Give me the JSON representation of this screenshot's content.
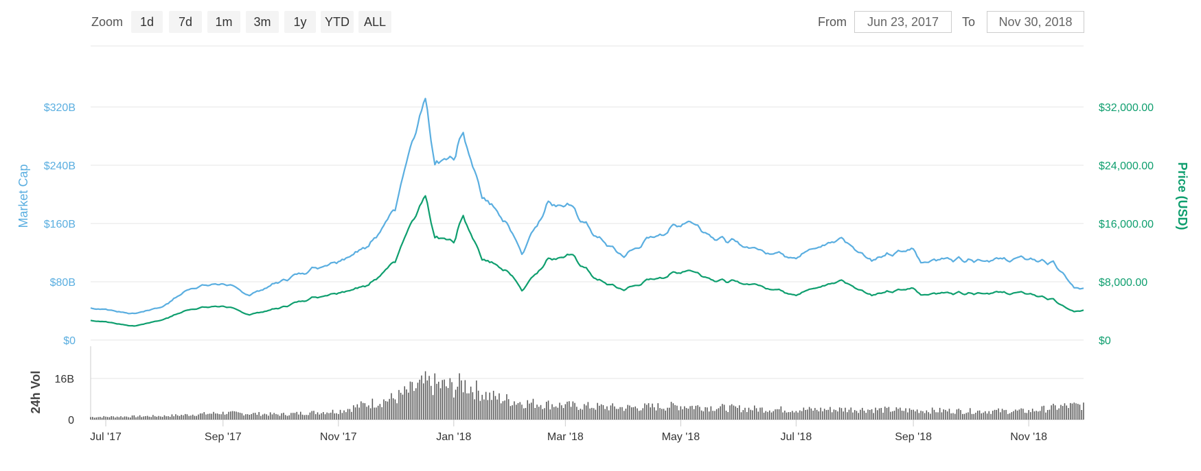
{
  "toolbar": {
    "zoom_label": "Zoom",
    "zoom_buttons": [
      "1d",
      "7d",
      "1m",
      "3m",
      "1y",
      "YTD",
      "ALL"
    ],
    "from_label": "From",
    "from_value": "Jun 23, 2017",
    "to_label": "To",
    "to_value": "Nov 30, 2018"
  },
  "colors": {
    "market_cap": "#5aaee0",
    "price": "#0e9e6e",
    "volume": "#555555",
    "grid": "#e6e6e6"
  },
  "chart_data": {
    "type": "line",
    "left_axis": {
      "title": "Market Cap",
      "ylim": [
        0,
        320000000000
      ],
      "tick_values": [
        0,
        80000000000,
        160000000000,
        240000000000,
        320000000000
      ],
      "tick_labels": [
        "$0",
        "$80B",
        "$160B",
        "$240B",
        "$320B"
      ]
    },
    "right_axis": {
      "title": "Price (USD)",
      "ylim": [
        0,
        32000
      ],
      "tick_values": [
        0,
        8000,
        16000,
        24000,
        32000
      ],
      "tick_labels": [
        "$0",
        "$8,000.00",
        "$16,000.00",
        "$24,000.00",
        "$32,000.00"
      ]
    },
    "volume_axis": {
      "title": "24h Vol",
      "ylim": [
        0,
        16000000000
      ],
      "tick_values": [
        0,
        16000000000
      ],
      "tick_labels": [
        "0",
        "16B"
      ]
    },
    "x_axis": {
      "range": [
        "2017-06-23",
        "2018-11-30"
      ],
      "tick_dates": [
        "2017-07-01",
        "2017-09-01",
        "2017-11-01",
        "2018-01-01",
        "2018-03-01",
        "2018-05-01",
        "2018-07-01",
        "2018-09-01",
        "2018-11-01"
      ],
      "tick_labels": [
        "Jul '17",
        "Sep '17",
        "Nov '17",
        "Jan '18",
        "Mar '18",
        "May '18",
        "Jul '18",
        "Sep '18",
        "Nov '18"
      ]
    },
    "grid": true,
    "series": [
      {
        "axis": "left",
        "x": [
          "2017-06-23",
          "2017-07-01",
          "2017-07-16",
          "2017-07-31",
          "2017-08-15",
          "2017-09-01",
          "2017-09-15",
          "2017-10-01",
          "2017-10-15",
          "2017-11-01",
          "2017-11-15",
          "2017-12-01",
          "2017-12-08",
          "2017-12-17",
          "2017-12-22",
          "2018-01-01",
          "2018-01-06",
          "2018-01-16",
          "2018-02-01",
          "2018-02-06",
          "2018-02-20",
          "2018-03-05",
          "2018-03-18",
          "2018-04-01",
          "2018-04-12",
          "2018-05-05",
          "2018-05-20",
          "2018-06-10",
          "2018-07-01",
          "2018-07-25",
          "2018-08-10",
          "2018-09-01",
          "2018-09-05",
          "2018-09-20",
          "2018-10-15",
          "2018-11-01",
          "2018-11-14",
          "2018-11-20",
          "2018-11-25",
          "2018-11-30"
        ],
        "values": [
          44000000000,
          42000000000,
          36000000000,
          46000000000,
          72000000000,
          78000000000,
          62000000000,
          80000000000,
          95000000000,
          110000000000,
          125000000000,
          180000000000,
          250000000000,
          325000000000,
          240000000000,
          250000000000,
          285000000000,
          200000000000,
          150000000000,
          120000000000,
          190000000000,
          180000000000,
          140000000000,
          115000000000,
          135000000000,
          165000000000,
          140000000000,
          125000000000,
          115000000000,
          140000000000,
          110000000000,
          125000000000,
          108000000000,
          112000000000,
          110000000000,
          112000000000,
          105000000000,
          88000000000,
          70000000000,
          71000000000
        ]
      },
      {
        "axis": "right",
        "x": [
          "2017-06-23",
          "2017-07-01",
          "2017-07-16",
          "2017-07-31",
          "2017-08-15",
          "2017-09-01",
          "2017-09-15",
          "2017-10-01",
          "2017-10-15",
          "2017-11-01",
          "2017-11-15",
          "2017-12-01",
          "2017-12-08",
          "2017-12-17",
          "2017-12-22",
          "2018-01-01",
          "2018-01-06",
          "2018-01-16",
          "2018-02-01",
          "2018-02-06",
          "2018-02-20",
          "2018-03-05",
          "2018-03-18",
          "2018-04-01",
          "2018-04-12",
          "2018-05-05",
          "2018-05-20",
          "2018-06-10",
          "2018-07-01",
          "2018-07-25",
          "2018-08-10",
          "2018-09-01",
          "2018-09-05",
          "2018-09-20",
          "2018-10-15",
          "2018-11-01",
          "2018-11-14",
          "2018-11-20",
          "2018-11-25",
          "2018-11-30"
        ],
        "values": [
          2700,
          2500,
          1900,
          2800,
          4300,
          4700,
          3500,
          4400,
          5600,
          6600,
          7300,
          10800,
          15000,
          19400,
          14000,
          13500,
          17100,
          11300,
          9000,
          6900,
          11200,
          11500,
          8200,
          6900,
          8000,
          9700,
          8200,
          7600,
          6300,
          8200,
          6200,
          7100,
          6300,
          6500,
          6500,
          6400,
          5500,
          4500,
          3800,
          4100
        ]
      },
      {
        "axis": "volume",
        "x": [
          "2017-06-23",
          "2017-08-01",
          "2017-09-01",
          "2017-10-01",
          "2017-11-01",
          "2017-11-15",
          "2017-12-01",
          "2017-12-17",
          "2018-01-01",
          "2018-01-06",
          "2018-01-20",
          "2018-02-06",
          "2018-03-01",
          "2018-04-01",
          "2018-05-01",
          "2018-06-01",
          "2018-07-01",
          "2018-08-01",
          "2018-09-01",
          "2018-10-01",
          "2018-11-01",
          "2018-11-20",
          "2018-11-30"
        ],
        "values": [
          1000000000,
          1400000000,
          2600000000,
          2000000000,
          3300000000,
          5800000000,
          8300000000,
          14000000000,
          12500000000,
          14000000000,
          9000000000,
          6600000000,
          5500000000,
          4600000000,
          5300000000,
          4300000000,
          3800000000,
          4000000000,
          3600000000,
          3300000000,
          3300000000,
          5200000000,
          5500000000
        ]
      }
    ]
  }
}
